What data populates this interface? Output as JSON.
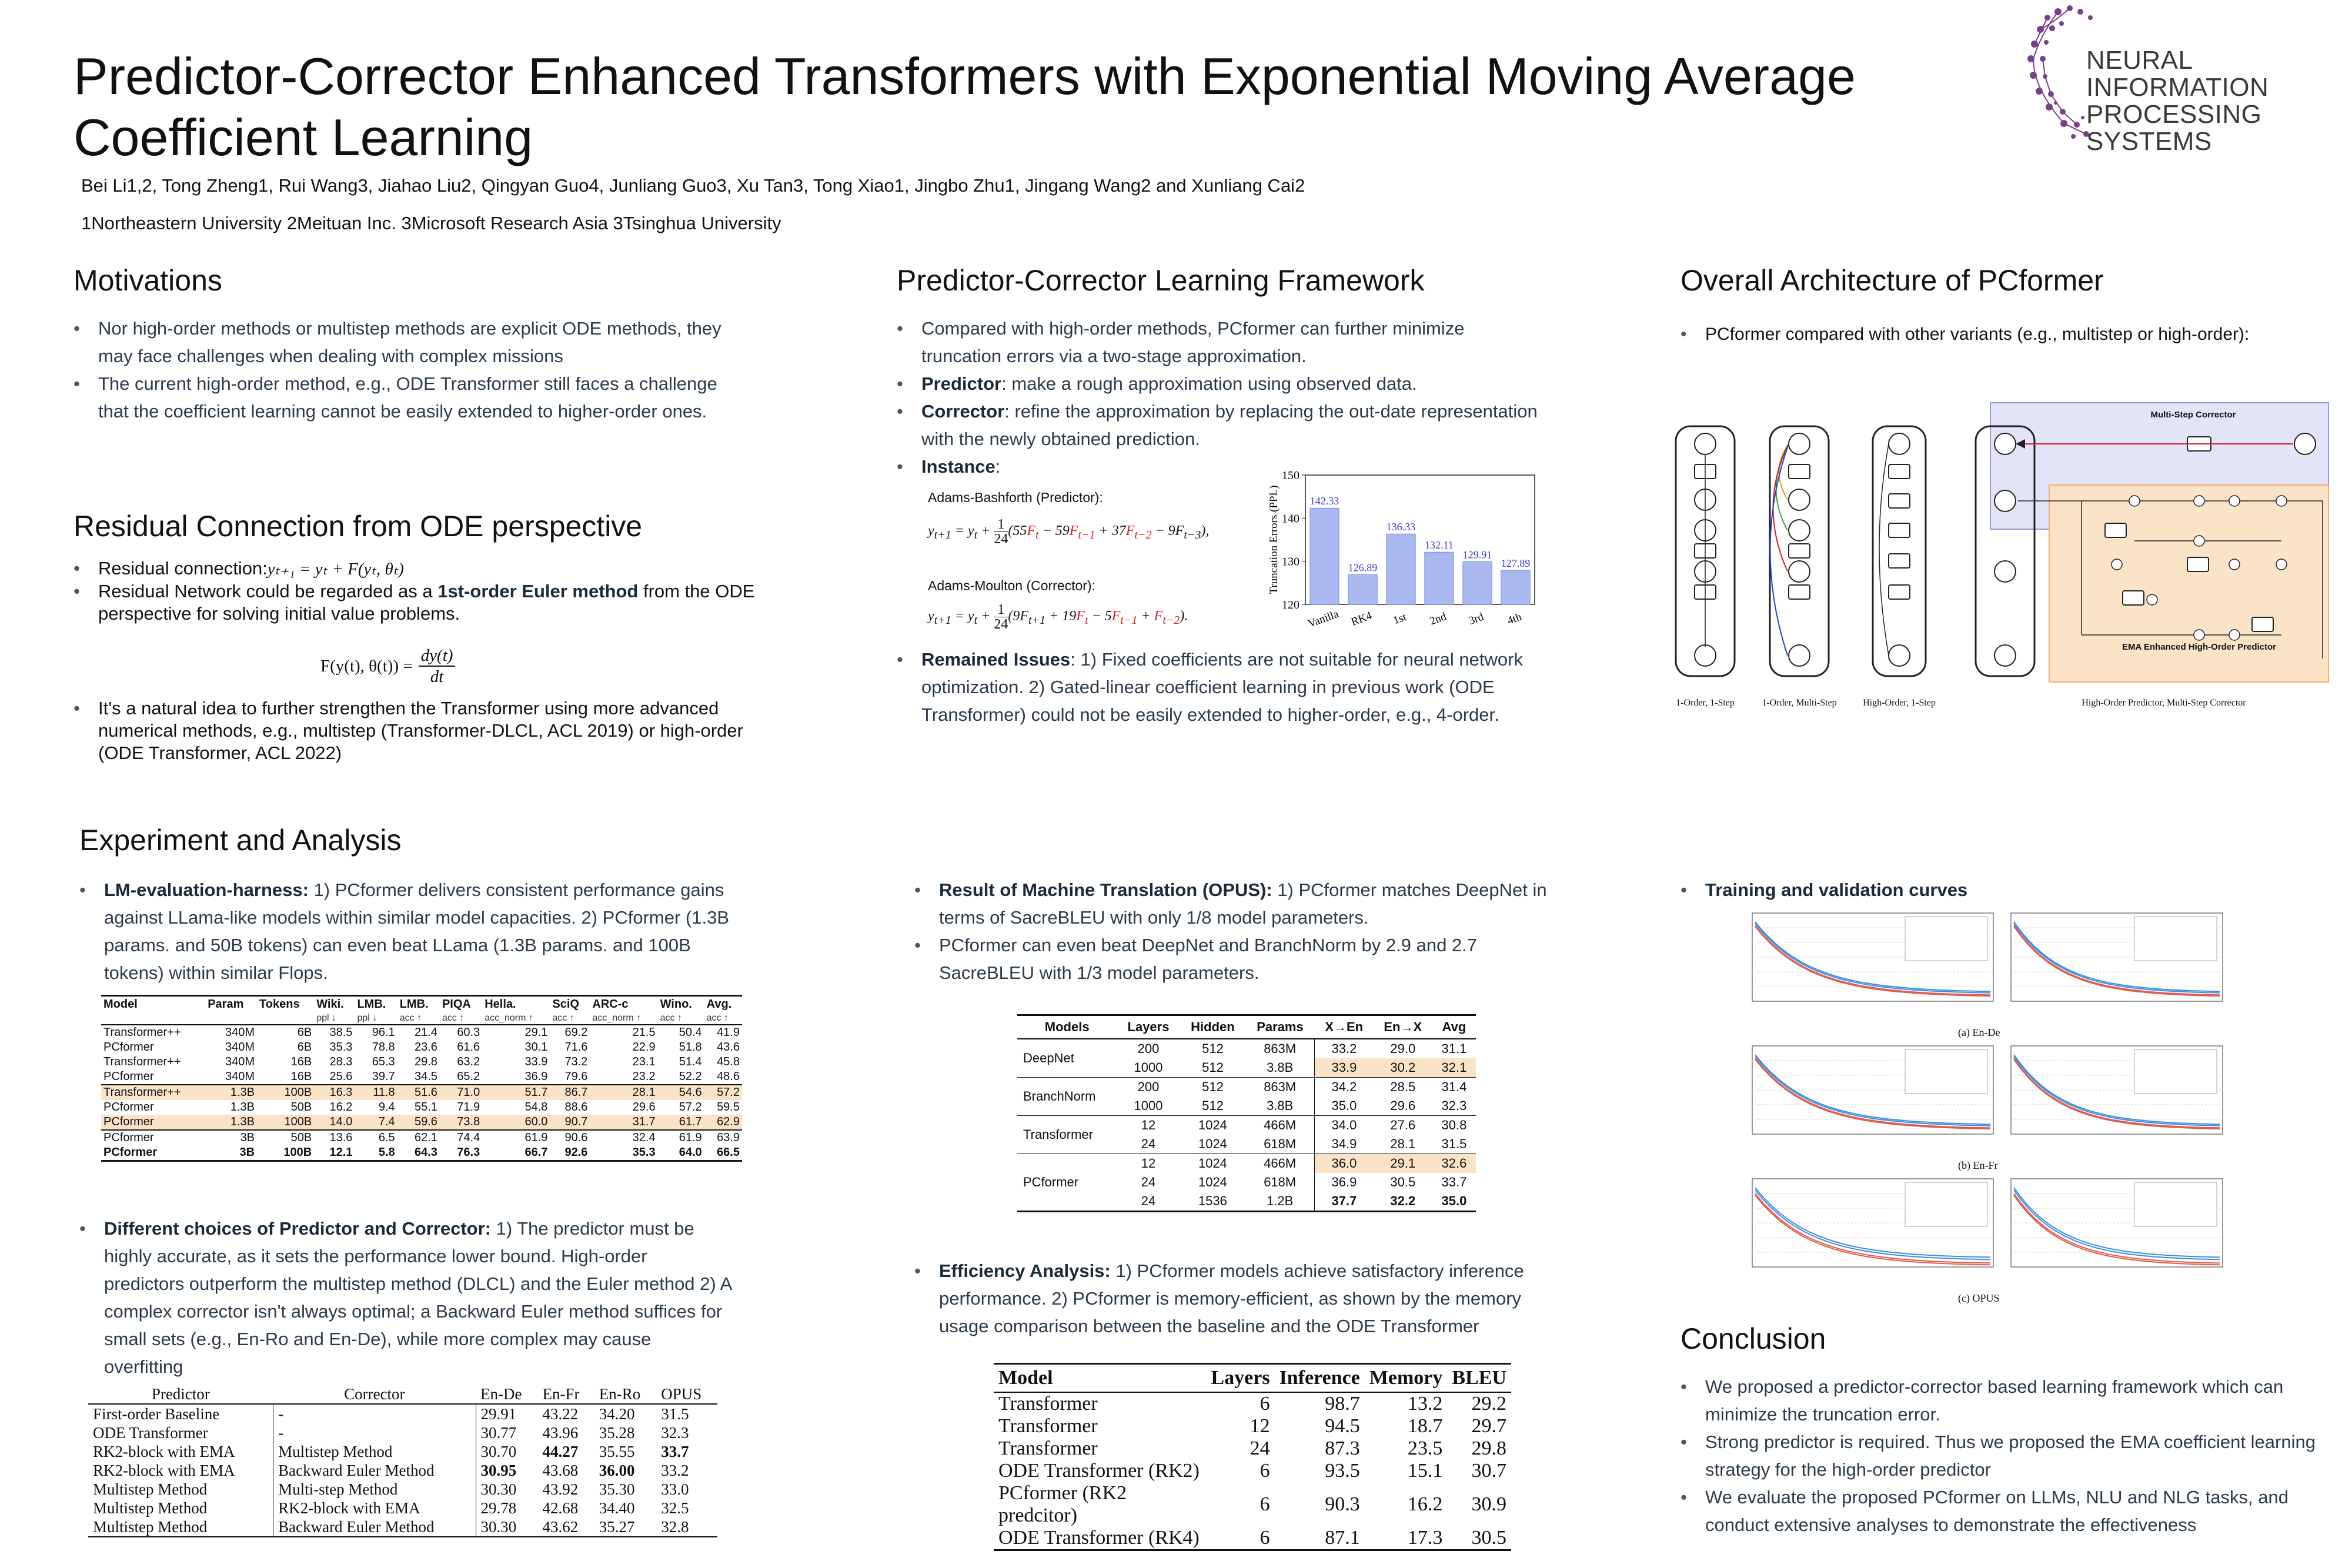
{
  "header": {
    "title_line1": "Predictor-Corrector Enhanced Transformers with Exponential Moving Average",
    "title_line2": "Coefficient Learning",
    "authors": "Bei Li1,2, Tong Zheng1, Rui Wang3, Jiahao Liu2, Qingyan Guo4, Junliang Guo3, Xu Tan3, Tong Xiao1, Jingbo Zhu1, Jingang Wang2 and Xunliang Cai2",
    "affiliations": "1Northeastern University 2Meituan Inc. 3Microsoft Research Asia 3Tsinghua University",
    "logo_line1": "NEURAL INFORMATION",
    "logo_line2": "PROCESSING SYSTEMS"
  },
  "motivations": {
    "title": "Motivations",
    "items": [
      "Nor high-order methods or multistep methods are explicit ODE methods, they may face challenges when dealing with complex missions",
      "The current high-order method, e.g., ODE Transformer still faces a challenge that the coefficient learning cannot be easily extended to higher-order ones."
    ]
  },
  "residual": {
    "title": "Residual Connection from ODE perspective",
    "item1_label": "Residual connection:",
    "item1_eq": "yₜ₊₁ = yₜ + F(yₜ, θₜ)",
    "item2_pre": "Residual Network could be regarded as a ",
    "item2_bold": "1st-order Euler method",
    "item2_post": " from the ODE perspective for solving initial value problems.",
    "eq_lhs": "F(y(t), θ(t)) =",
    "eq_num": "dy(t)",
    "eq_den": "dt",
    "item3": "It's a natural idea to further strengthen the Transformer using more advanced numerical methods, e.g., multistep (Transformer-DLCL, ACL 2019) or high-order (ODE Transformer, ACL 2022)"
  },
  "framework": {
    "title": "Predictor-Corrector Learning Framework",
    "item1": "Compared with high-order methods, PCformer can further minimize truncation errors via a two-stage approximation.",
    "predictor_label": "Predictor",
    "predictor_text": ": make a rough approximation using observed data.",
    "corrector_label": "Corrector",
    "corrector_text": ": refine the approximation by replacing the out-date representation with the newly obtained prediction.",
    "instance_label": "Instance",
    "adams_b": "Adams-Bashforth (Predictor):",
    "adams_m": "Adams-Moulton (Corrector):",
    "remained_label": "Remained Issues",
    "remained_text": ": 1) Fixed coefficients are not suitable for neural network optimization. 2) Gated-linear coefficient learning in previous work (ODE Transformer) could not be easily extended to higher-order, e.g., 4-order."
  },
  "chart_data": {
    "type": "bar",
    "categories": [
      "Vanilla",
      "RK4",
      "1st",
      "2nd",
      "3rd",
      "4th"
    ],
    "values": [
      142.33,
      126.89,
      136.33,
      132.11,
      129.91,
      127.89
    ],
    "ylabel": "Truncation Errors (PPL)",
    "ylim": [
      120,
      150
    ],
    "yticks": [
      120,
      130,
      140,
      150
    ],
    "bar_color": "#aab8f0",
    "label_color": "#3a3ad0"
  },
  "architecture": {
    "title": "Overall Architecture of PCformer",
    "item1": "PCformer compared with other variants (e.g., multistep or high-order):",
    "captions": [
      "1-Order, 1-Step",
      "1-Order, Multi-Step",
      "High-Order, 1-Step",
      "High-Order Predictor, Multi-Step Corrector"
    ],
    "multi_step_label": "Multi-Step Corrector",
    "ema_label": "EMA Enhanced High-Order Predictor"
  },
  "experiment": {
    "title": "Experiment and Analysis",
    "lm_label": "LM-evaluation-harness:",
    "lm_text": " 1) PCformer delivers consistent performance gains against LLama-like models within similar model capacities. 2) PCformer (1.3B params. and 50B tokens) can even beat LLama (1.3B params. and 100B tokens) within similar Flops.",
    "lm_table": {
      "headers": [
        "Model",
        "Param",
        "Tokens",
        "Wiki.",
        "LMB.",
        "LMB.",
        "PIQA",
        "Hella.",
        "SciQ",
        "ARC-c",
        "Wino.",
        "Avg."
      ],
      "subheaders": [
        "",
        "",
        "",
        "ppl ↓",
        "ppl ↓",
        "acc ↑",
        "acc ↑",
        "acc_norm ↑",
        "acc ↑",
        "acc_norm ↑",
        "acc ↑",
        "acc ↑"
      ],
      "rows": [
        [
          "Transformer++",
          "340M",
          "6B",
          "38.5",
          "96.1",
          "21.4",
          "60.3",
          "29.1",
          "69.2",
          "21.5",
          "50.4",
          "41.9"
        ],
        [
          "PCformer",
          "340M",
          "6B",
          "35.3",
          "78.8",
          "23.6",
          "61.6",
          "30.1",
          "71.6",
          "22.9",
          "51.8",
          "43.6"
        ],
        [
          "Transformer++",
          "340M",
          "16B",
          "28.3",
          "65.3",
          "29.8",
          "63.2",
          "33.9",
          "73.2",
          "23.1",
          "51.4",
          "45.8"
        ],
        [
          "PCformer",
          "340M",
          "16B",
          "25.6",
          "39.7",
          "34.5",
          "65.2",
          "36.9",
          "79.6",
          "23.2",
          "52.2",
          "48.6"
        ],
        [
          "Transformer++",
          "1.3B",
          "100B",
          "16.3",
          "11.8",
          "51.6",
          "71.0",
          "51.7",
          "86.7",
          "28.1",
          "54.6",
          "57.2"
        ],
        [
          "PCformer",
          "1.3B",
          "50B",
          "16.2",
          "9.4",
          "55.1",
          "71.9",
          "54.8",
          "88.6",
          "29.6",
          "57.2",
          "59.5"
        ],
        [
          "PCformer",
          "1.3B",
          "100B",
          "14.0",
          "7.4",
          "59.6",
          "73.8",
          "60.0",
          "90.7",
          "31.7",
          "61.7",
          "62.9"
        ],
        [
          "PCformer",
          "3B",
          "50B",
          "13.6",
          "6.5",
          "62.1",
          "74.4",
          "61.9",
          "90.6",
          "32.4",
          "61.9",
          "63.9"
        ],
        [
          "PCformer",
          "3B",
          "100B",
          "12.1",
          "5.8",
          "64.3",
          "76.3",
          "66.7",
          "92.6",
          "35.3",
          "64.0",
          "66.5"
        ]
      ]
    },
    "choices_label": "Different choices of Predictor and Corrector:",
    "choices_text": " 1) The predictor must be highly accurate, as it sets the performance lower bound.  High-order predictors outperform the multistep method (DLCL) and the Euler method 2) A complex corrector isn't always optimal; a Backward Euler method suffices for small sets (e.g., En-Ro and En-De), while more complex may cause overfitting",
    "pc_table": {
      "headers": [
        "Predictor",
        "Corrector",
        "En-De",
        "En-Fr",
        "En-Ro",
        "OPUS"
      ],
      "rows": [
        [
          "First-order Baseline",
          "-",
          "29.91",
          "43.22",
          "34.20",
          "31.5"
        ],
        [
          "ODE Transformer",
          "-",
          "30.77",
          "43.96",
          "35.28",
          "32.3"
        ],
        [
          "RK2-block with EMA",
          "Multistep Method",
          "30.70",
          "44.27",
          "35.55",
          "33.7"
        ],
        [
          "RK2-block with EMA",
          "Backward Euler Method",
          "30.95",
          "43.68",
          "36.00",
          "33.2"
        ],
        [
          "Multistep Method",
          "Multi-step Method",
          "30.30",
          "43.92",
          "35.30",
          "33.0"
        ],
        [
          "Multistep Method",
          "RK2-block with EMA",
          "29.78",
          "42.68",
          "34.40",
          "32.5"
        ],
        [
          "Multistep Method",
          "Backward Euler Method",
          "30.30",
          "43.62",
          "35.27",
          "32.8"
        ]
      ]
    },
    "mt_label": "Result of Machine Translation (OPUS):",
    "mt_text1": " 1) PCformer matches DeepNet in terms of SacreBLEU with only 1/8 model parameters.",
    "mt_text2": "PCformer can even beat DeepNet and BranchNorm by 2.9 and 2.7 SacreBLEU with 1/3 model parameters.",
    "mt_table": {
      "headers": [
        "Models",
        "Layers",
        "Hidden",
        "Params",
        "X→En",
        "En→X",
        "Avg"
      ],
      "groups": [
        {
          "name": "DeepNet",
          "rows": [
            [
              "200",
              "512",
              "863M",
              "33.2",
              "29.0",
              "31.1"
            ],
            [
              "1000",
              "512",
              "3.8B",
              "33.9",
              "30.2",
              "32.1"
            ]
          ]
        },
        {
          "name": "BranchNorm",
          "rows": [
            [
              "200",
              "512",
              "863M",
              "34.2",
              "28.5",
              "31.4"
            ],
            [
              "1000",
              "512",
              "3.8B",
              "35.0",
              "29.6",
              "32.3"
            ]
          ]
        },
        {
          "name": "Transformer",
          "rows": [
            [
              "12",
              "1024",
              "466M",
              "34.0",
              "27.6",
              "30.8"
            ],
            [
              "24",
              "1024",
              "618M",
              "34.9",
              "28.1",
              "31.5"
            ]
          ]
        },
        {
          "name": "PCformer",
          "rows": [
            [
              "12",
              "1024",
              "466M",
              "36.0",
              "29.1",
              "32.6"
            ],
            [
              "24",
              "1024",
              "618M",
              "36.9",
              "30.5",
              "33.7"
            ],
            [
              "24",
              "1536",
              "1.2B",
              "37.7",
              "32.2",
              "35.0"
            ]
          ]
        }
      ]
    },
    "eff_label": "Efficiency Analysis:",
    "eff_text": " 1) PCformer models achieve satisfactory inference performance. 2) PCformer is memory-efficient, as shown by the memory usage comparison between the baseline and the ODE Transformer",
    "eff_table": {
      "headers": [
        "Model",
        "Layers",
        "Inference",
        "Memory",
        "BLEU"
      ],
      "rows": [
        [
          "Transformer",
          "6",
          "98.7",
          "13.2",
          "29.2"
        ],
        [
          "Transformer",
          "12",
          "94.5",
          "18.7",
          "29.7"
        ],
        [
          "Transformer",
          "24",
          "87.3",
          "23.5",
          "29.8"
        ],
        [
          "ODE Transformer (RK2)",
          "6",
          "93.5",
          "15.1",
          "30.7"
        ],
        [
          "PCformer (RK2 predcitor)",
          "6",
          "90.3",
          "16.2",
          "30.9"
        ],
        [
          "ODE Transformer (RK4)",
          "6",
          "87.1",
          "17.3",
          "30.5"
        ]
      ]
    },
    "curves_label": "Training and validation curves",
    "curve_captions": [
      "(a) En-De",
      "(b) En-Fr",
      "(c) OPUS"
    ]
  },
  "conclusion": {
    "title": "Conclusion",
    "items": [
      "We proposed a predictor-corrector based learning framework which can minimize the truncation error.",
      "Strong predictor is required. Thus we proposed the EMA coefficient learning strategy for the high-order predictor",
      "We evaluate the proposed PCformer on LLMs, NLU and NLG tasks, and conduct extensive analyses to demonstrate the effectiveness"
    ]
  },
  "colors": {
    "accent_orange": "#fbe3c8",
    "logo_purple": "#7a3e8f",
    "curve_blue": "#3c8ee0",
    "curve_red": "#e25a4a"
  }
}
